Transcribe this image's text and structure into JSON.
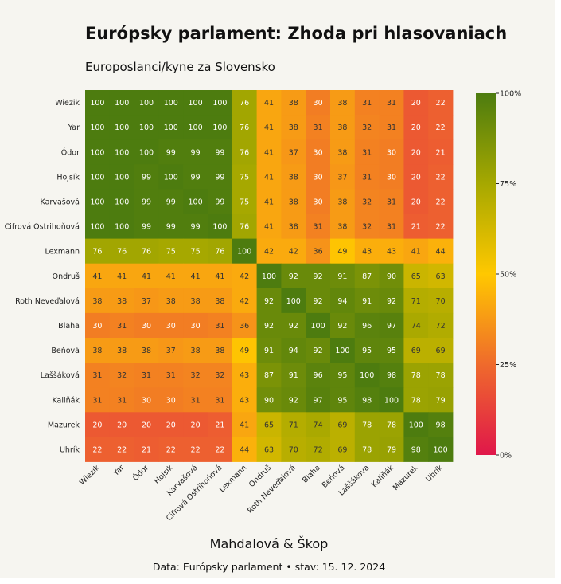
{
  "title": "Európsky parlament: Zhoda pri hlasovaniach",
  "subtitle": "Europoslanci/kyne za Slovensko",
  "footer": {
    "authors": "Mahdalová & Škop",
    "source": "Data: Európsky parlament • stav: 15. 12. 2024"
  },
  "colors": {
    "background": "#f6f5f0",
    "scale_0": "#e0174a",
    "scale_25": "#ef6a2c",
    "scale_50": "#ffc800",
    "scale_75": "#a6a800",
    "scale_100": "#4d7c0f"
  },
  "chart_data": {
    "type": "heatmap",
    "rows": [
      "Wiezik",
      "Yar",
      "Ódor",
      "Hojsík",
      "Karvašová",
      "Cifrová Ostrihoňová",
      "Lexmann",
      "Ondruš",
      "Roth Neveďalová",
      "Blaha",
      "Beňová",
      "Laššáková",
      "Kaliňák",
      "Mazurek",
      "Uhrík"
    ],
    "columns": [
      "Wiezik",
      "Yar",
      "Ódor",
      "Hojsík",
      "Karvašová",
      "Cifrová Ostrihoňová",
      "Lexmann",
      "Ondruš",
      "Roth Neveďalová",
      "Blaha",
      "Beňová",
      "Laššáková",
      "Kaliňák",
      "Mazurek",
      "Uhrík"
    ],
    "values": [
      [
        100,
        100,
        100,
        100,
        100,
        100,
        76,
        41,
        38,
        30,
        38,
        31,
        31,
        20,
        22
      ],
      [
        100,
        100,
        100,
        100,
        100,
        100,
        76,
        41,
        38,
        31,
        38,
        32,
        31,
        20,
        22
      ],
      [
        100,
        100,
        100,
        99,
        99,
        99,
        76,
        41,
        37,
        30,
        38,
        31,
        30,
        20,
        21
      ],
      [
        100,
        100,
        99,
        100,
        99,
        99,
        75,
        41,
        38,
        30,
        37,
        31,
        30,
        20,
        22
      ],
      [
        100,
        100,
        99,
        99,
        100,
        99,
        75,
        41,
        38,
        30,
        38,
        32,
        31,
        20,
        22
      ],
      [
        100,
        100,
        99,
        99,
        99,
        100,
        76,
        41,
        38,
        31,
        38,
        32,
        31,
        21,
        22
      ],
      [
        76,
        76,
        76,
        75,
        75,
        76,
        100,
        42,
        42,
        36,
        49,
        43,
        43,
        41,
        44
      ],
      [
        41,
        41,
        41,
        41,
        41,
        41,
        42,
        100,
        92,
        92,
        91,
        87,
        90,
        65,
        63
      ],
      [
        38,
        38,
        37,
        38,
        38,
        38,
        42,
        92,
        100,
        92,
        94,
        91,
        92,
        71,
        70
      ],
      [
        30,
        31,
        30,
        30,
        30,
        31,
        36,
        92,
        92,
        100,
        92,
        96,
        97,
        74,
        72
      ],
      [
        38,
        38,
        38,
        37,
        38,
        38,
        49,
        91,
        94,
        92,
        100,
        95,
        95,
        69,
        69
      ],
      [
        31,
        32,
        31,
        31,
        32,
        32,
        43,
        87,
        91,
        96,
        95,
        100,
        98,
        78,
        78
      ],
      [
        31,
        31,
        30,
        30,
        31,
        31,
        43,
        90,
        92,
        97,
        95,
        98,
        100,
        78,
        79
      ],
      [
        20,
        20,
        20,
        20,
        20,
        21,
        41,
        65,
        71,
        74,
        69,
        78,
        78,
        100,
        98
      ],
      [
        22,
        22,
        21,
        22,
        22,
        22,
        44,
        63,
        70,
        72,
        69,
        78,
        79,
        98,
        100
      ]
    ],
    "value_range": [
      0,
      100
    ],
    "colorbar": {
      "ticks": [
        0,
        25,
        50,
        75,
        100
      ],
      "tick_labels": [
        "0%",
        "25%",
        "50%",
        "75%",
        "100%"
      ]
    }
  }
}
